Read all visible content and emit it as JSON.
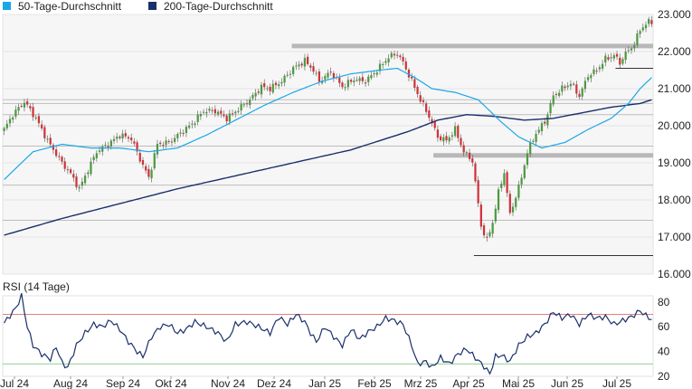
{
  "colors": {
    "ma50": "#1aa7e8",
    "ma200": "#1a2f6b",
    "up": "#4c9a3f",
    "down": "#d1323a",
    "plot_bg": "#f6f6f6",
    "rsi_line": "#1a2f6b",
    "rsi_upper": "#e08080",
    "rsi_lower": "#8fcf8f",
    "support": "#b8b8b8"
  },
  "chart_data": [
    {
      "type": "candlestick",
      "legend": [
        {
          "name": "50-Tage-Durchschnitt",
          "color": "#1aa7e8"
        },
        {
          "name": "200-Tage-Durchschnitt",
          "color": "#1a2f6b"
        }
      ],
      "ylim": [
        16000,
        23000
      ],
      "y_ticks": [
        "23.000",
        "22.000",
        "21.000",
        "20.000",
        "19.000",
        "18.000",
        "17.000",
        "16.000"
      ],
      "y_tick_values": [
        23000,
        22000,
        21000,
        20000,
        19000,
        18000,
        17000,
        16000
      ],
      "x_ticks": [
        "Jul 24",
        "Aug 24",
        "Sep 24",
        "Okt 24",
        "Nov 24",
        "Dez 24",
        "Jan 25",
        "Feb 25",
        "Mrz 25",
        "Apr 25",
        "Mai 25",
        "Jun 25",
        "Jul 25"
      ],
      "close_anchors": [
        [
          0,
          19900
        ],
        [
          3,
          20300
        ],
        [
          7,
          20650
        ],
        [
          11,
          20200
        ],
        [
          15,
          19600
        ],
        [
          20,
          19000
        ],
        [
          23,
          18700
        ],
        [
          26,
          18300
        ],
        [
          28,
          18650
        ],
        [
          32,
          19300
        ],
        [
          36,
          19500
        ],
        [
          40,
          19750
        ],
        [
          44,
          19650
        ],
        [
          47,
          19100
        ],
        [
          50,
          18600
        ],
        [
          53,
          19500
        ],
        [
          57,
          19550
        ],
        [
          61,
          19800
        ],
        [
          65,
          20050
        ],
        [
          69,
          20400
        ],
        [
          73,
          20400
        ],
        [
          77,
          20200
        ],
        [
          81,
          20450
        ],
        [
          85,
          20700
        ],
        [
          89,
          21050
        ],
        [
          92,
          21000
        ],
        [
          96,
          21200
        ],
        [
          100,
          21550
        ],
        [
          104,
          21750
        ],
        [
          107,
          21500
        ],
        [
          109,
          21200
        ],
        [
          113,
          21450
        ],
        [
          117,
          21050
        ],
        [
          121,
          21250
        ],
        [
          125,
          21200
        ],
        [
          129,
          21500
        ],
        [
          133,
          21850
        ],
        [
          136,
          21950
        ],
        [
          138,
          21700
        ],
        [
          141,
          21200
        ],
        [
          144,
          20700
        ],
        [
          147,
          20250
        ],
        [
          150,
          19700
        ],
        [
          153,
          19600
        ],
        [
          156,
          19900
        ],
        [
          159,
          19300
        ],
        [
          162,
          19050
        ],
        [
          165,
          17300
        ],
        [
          167,
          16900
        ],
        [
          169,
          17400
        ],
        [
          171,
          18200
        ],
        [
          173,
          18750
        ],
        [
          175,
          17600
        ],
        [
          177,
          18100
        ],
        [
          179,
          18600
        ],
        [
          181,
          19300
        ],
        [
          184,
          19800
        ],
        [
          187,
          20100
        ],
        [
          190,
          20800
        ],
        [
          193,
          21000
        ],
        [
          196,
          21150
        ],
        [
          199,
          20800
        ],
        [
          202,
          21350
        ],
        [
          205,
          21500
        ],
        [
          208,
          21800
        ],
        [
          211,
          21900
        ],
        [
          213,
          21700
        ],
        [
          215,
          21950
        ],
        [
          218,
          22200
        ],
        [
          220,
          22600
        ],
        [
          223,
          22800
        ]
      ],
      "ma50_anchors": [
        [
          0,
          18550
        ],
        [
          10,
          19300
        ],
        [
          20,
          19500
        ],
        [
          30,
          19400
        ],
        [
          40,
          19400
        ],
        [
          50,
          19300
        ],
        [
          60,
          19400
        ],
        [
          70,
          19750
        ],
        [
          80,
          20150
        ],
        [
          90,
          20550
        ],
        [
          100,
          20900
        ],
        [
          110,
          21200
        ],
        [
          120,
          21400
        ],
        [
          130,
          21500
        ],
        [
          136,
          21550
        ],
        [
          142,
          21300
        ],
        [
          148,
          21000
        ],
        [
          156,
          20900
        ],
        [
          164,
          20700
        ],
        [
          172,
          20100
        ],
        [
          178,
          19700
        ],
        [
          186,
          19400
        ],
        [
          194,
          19550
        ],
        [
          202,
          19900
        ],
        [
          210,
          20200
        ],
        [
          216,
          20600
        ],
        [
          220,
          21000
        ],
        [
          224,
          21300
        ]
      ],
      "ma200_anchors": [
        [
          0,
          17050
        ],
        [
          20,
          17500
        ],
        [
          40,
          17900
        ],
        [
          60,
          18300
        ],
        [
          80,
          18650
        ],
        [
          100,
          19000
        ],
        [
          120,
          19350
        ],
        [
          140,
          19850
        ],
        [
          150,
          20150
        ],
        [
          160,
          20300
        ],
        [
          170,
          20250
        ],
        [
          180,
          20150
        ],
        [
          190,
          20200
        ],
        [
          200,
          20350
        ],
        [
          210,
          20500
        ],
        [
          220,
          20600
        ],
        [
          224,
          20700
        ]
      ],
      "support_bars": [
        {
          "y": 22150,
          "x_from": 100,
          "x_to": 238
        },
        {
          "y": 19200,
          "x_from": 149,
          "x_to": 238
        }
      ],
      "horizontal_lines": [
        {
          "y": 20700
        },
        {
          "y": 20600
        },
        {
          "y": 20300
        },
        {
          "y": 19450
        },
        {
          "y": 18400
        },
        {
          "y": 17450
        }
      ],
      "marker_lines": [
        {
          "y": 21550,
          "x_from": 212,
          "x_to": 238
        },
        {
          "y": 16500,
          "x_from": 163,
          "x_to": 238
        }
      ]
    },
    {
      "type": "line",
      "title": "RSI (14 Tage)",
      "ylim": [
        20,
        85
      ],
      "y_ticks": [
        "80",
        "60",
        "40",
        "20"
      ],
      "y_tick_values": [
        80,
        60,
        40,
        20
      ],
      "upper_band": 70,
      "lower_band": 30,
      "rsi_anchors": [
        [
          0,
          63
        ],
        [
          4,
          75
        ],
        [
          6,
          85
        ],
        [
          8,
          60
        ],
        [
          10,
          45
        ],
        [
          13,
          38
        ],
        [
          16,
          34
        ],
        [
          18,
          44
        ],
        [
          20,
          31
        ],
        [
          22,
          27
        ],
        [
          25,
          45
        ],
        [
          28,
          55
        ],
        [
          31,
          62
        ],
        [
          34,
          60
        ],
        [
          37,
          65
        ],
        [
          40,
          58
        ],
        [
          43,
          48
        ],
        [
          46,
          40
        ],
        [
          48,
          36
        ],
        [
          51,
          52
        ],
        [
          54,
          60
        ],
        [
          57,
          62
        ],
        [
          60,
          55
        ],
        [
          63,
          58
        ],
        [
          66,
          64
        ],
        [
          70,
          60
        ],
        [
          74,
          55
        ],
        [
          77,
          48
        ],
        [
          80,
          62
        ],
        [
          84,
          64
        ],
        [
          88,
          60
        ],
        [
          92,
          55
        ],
        [
          95,
          68
        ],
        [
          98,
          62
        ],
        [
          101,
          70
        ],
        [
          104,
          64
        ],
        [
          106,
          55
        ],
        [
          108,
          48
        ],
        [
          111,
          60
        ],
        [
          114,
          52
        ],
        [
          117,
          45
        ],
        [
          120,
          58
        ],
        [
          123,
          50
        ],
        [
          126,
          56
        ],
        [
          129,
          60
        ],
        [
          132,
          67
        ],
        [
          135,
          65
        ],
        [
          138,
          62
        ],
        [
          141,
          45
        ],
        [
          143,
          30
        ],
        [
          146,
          32
        ],
        [
          148,
          27
        ],
        [
          151,
          35
        ],
        [
          154,
          30
        ],
        [
          157,
          38
        ],
        [
          160,
          42
        ],
        [
          163,
          35
        ],
        [
          166,
          28
        ],
        [
          168,
          22
        ],
        [
          170,
          36
        ],
        [
          172,
          37
        ],
        [
          175,
          32
        ],
        [
          178,
          45
        ],
        [
          181,
          52
        ],
        [
          184,
          55
        ],
        [
          187,
          62
        ],
        [
          190,
          72
        ],
        [
          193,
          67
        ],
        [
          196,
          70
        ],
        [
          199,
          62
        ],
        [
          202,
          70
        ],
        [
          205,
          67
        ],
        [
          208,
          68
        ],
        [
          211,
          62
        ],
        [
          214,
          65
        ],
        [
          217,
          68
        ],
        [
          220,
          73
        ],
        [
          222,
          69
        ],
        [
          224,
          66
        ]
      ]
    }
  ]
}
